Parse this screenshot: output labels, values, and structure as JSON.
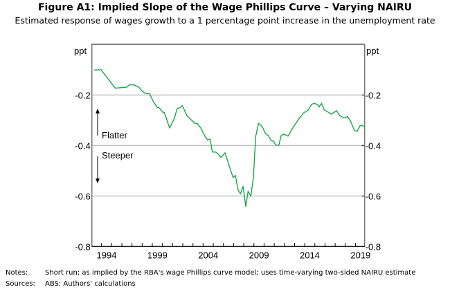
{
  "chart_data": {
    "type": "line",
    "title": "Figure A1: Implied Slope of the Wage Phillips Curve – Varying NAIRU",
    "subtitle": "Estimated response of wages growth to a 1 percentage point increase in the unemployment rate",
    "ylabel_left": "ppt",
    "ylabel_right": "ppt",
    "ylim": [
      -0.8,
      0
    ],
    "xlim": [
      1993.05,
      2019.9
    ],
    "yticks": [
      -0.2,
      -0.4,
      -0.6,
      -0.8
    ],
    "ytick_labels": [
      "-0.2",
      "-0.4",
      "-0.6",
      "-0.8"
    ],
    "xtick_labels": [
      "1994",
      "1999",
      "2004",
      "2009",
      "2014",
      "2019"
    ],
    "xtick_label_years": [
      1994,
      1999,
      2004,
      2009,
      2014,
      2019
    ],
    "grid": true,
    "annotations": {
      "up": "Flatter",
      "down": "Steeper"
    },
    "series": [
      {
        "name": "Implied slope",
        "color": "#1aa64a",
        "x": [
          1993.27,
          1993.95,
          1995.36,
          1996.5,
          1996.73,
          1997.18,
          1997.68,
          1997.98,
          1998.32,
          1998.73,
          1999.11,
          1999.45,
          1999.68,
          2000.02,
          2000.18,
          2000.7,
          2001.16,
          2001.45,
          2001.73,
          2001.95,
          2002.41,
          2002.86,
          2003.2,
          2003.43,
          2003.77,
          2004.23,
          2004.45,
          2004.68,
          2004.91,
          2005.25,
          2005.48,
          2005.75,
          2006.16,
          2006.61,
          2006.95,
          2007.18,
          2007.45,
          2007.68,
          2007.93,
          2008.2,
          2008.43,
          2008.7,
          2008.95,
          2009.18,
          2009.45,
          2009.8,
          2010.14,
          2010.43,
          2010.7,
          2010.93,
          2011.16,
          2011.45,
          2011.68,
          2011.95,
          2012.36,
          2012.75,
          2013.43,
          2013.89,
          2014.34,
          2014.68,
          2014.95,
          2015.25,
          2015.41,
          2015.66,
          2015.93,
          2016.27,
          2016.61,
          2017.14,
          2017.41,
          2017.75,
          2017.98,
          2018.2,
          2018.5,
          2018.89,
          2019.16,
          2019.45,
          2019.68,
          2019.91
        ],
        "y": [
          -0.101,
          -0.1,
          -0.173,
          -0.169,
          -0.16,
          -0.16,
          -0.169,
          -0.184,
          -0.194,
          -0.195,
          -0.226,
          -0.248,
          -0.251,
          -0.268,
          -0.269,
          -0.331,
          -0.294,
          -0.253,
          -0.251,
          -0.242,
          -0.282,
          -0.3,
          -0.312,
          -0.313,
          -0.331,
          -0.367,
          -0.379,
          -0.374,
          -0.426,
          -0.426,
          -0.434,
          -0.447,
          -0.429,
          -0.486,
          -0.527,
          -0.518,
          -0.577,
          -0.591,
          -0.562,
          -0.641,
          -0.582,
          -0.6,
          -0.527,
          -0.363,
          -0.312,
          -0.324,
          -0.353,
          -0.361,
          -0.381,
          -0.383,
          -0.399,
          -0.399,
          -0.361,
          -0.355,
          -0.363,
          -0.335,
          -0.294,
          -0.271,
          -0.26,
          -0.237,
          -0.233,
          -0.238,
          -0.248,
          -0.233,
          -0.259,
          -0.267,
          -0.276,
          -0.262,
          -0.28,
          -0.289,
          -0.291,
          -0.285,
          -0.303,
          -0.34,
          -0.344,
          -0.321,
          -0.321,
          -0.326
        ]
      }
    ]
  },
  "notes": {
    "notes_label": "Notes:",
    "notes_text": "Short run; as implied by the RBA's wage Phillips curve model; uses time-varying two-sided NAIRU estimate",
    "sources_label": "Sources:",
    "sources_text": "ABS; Authors' calculations"
  }
}
